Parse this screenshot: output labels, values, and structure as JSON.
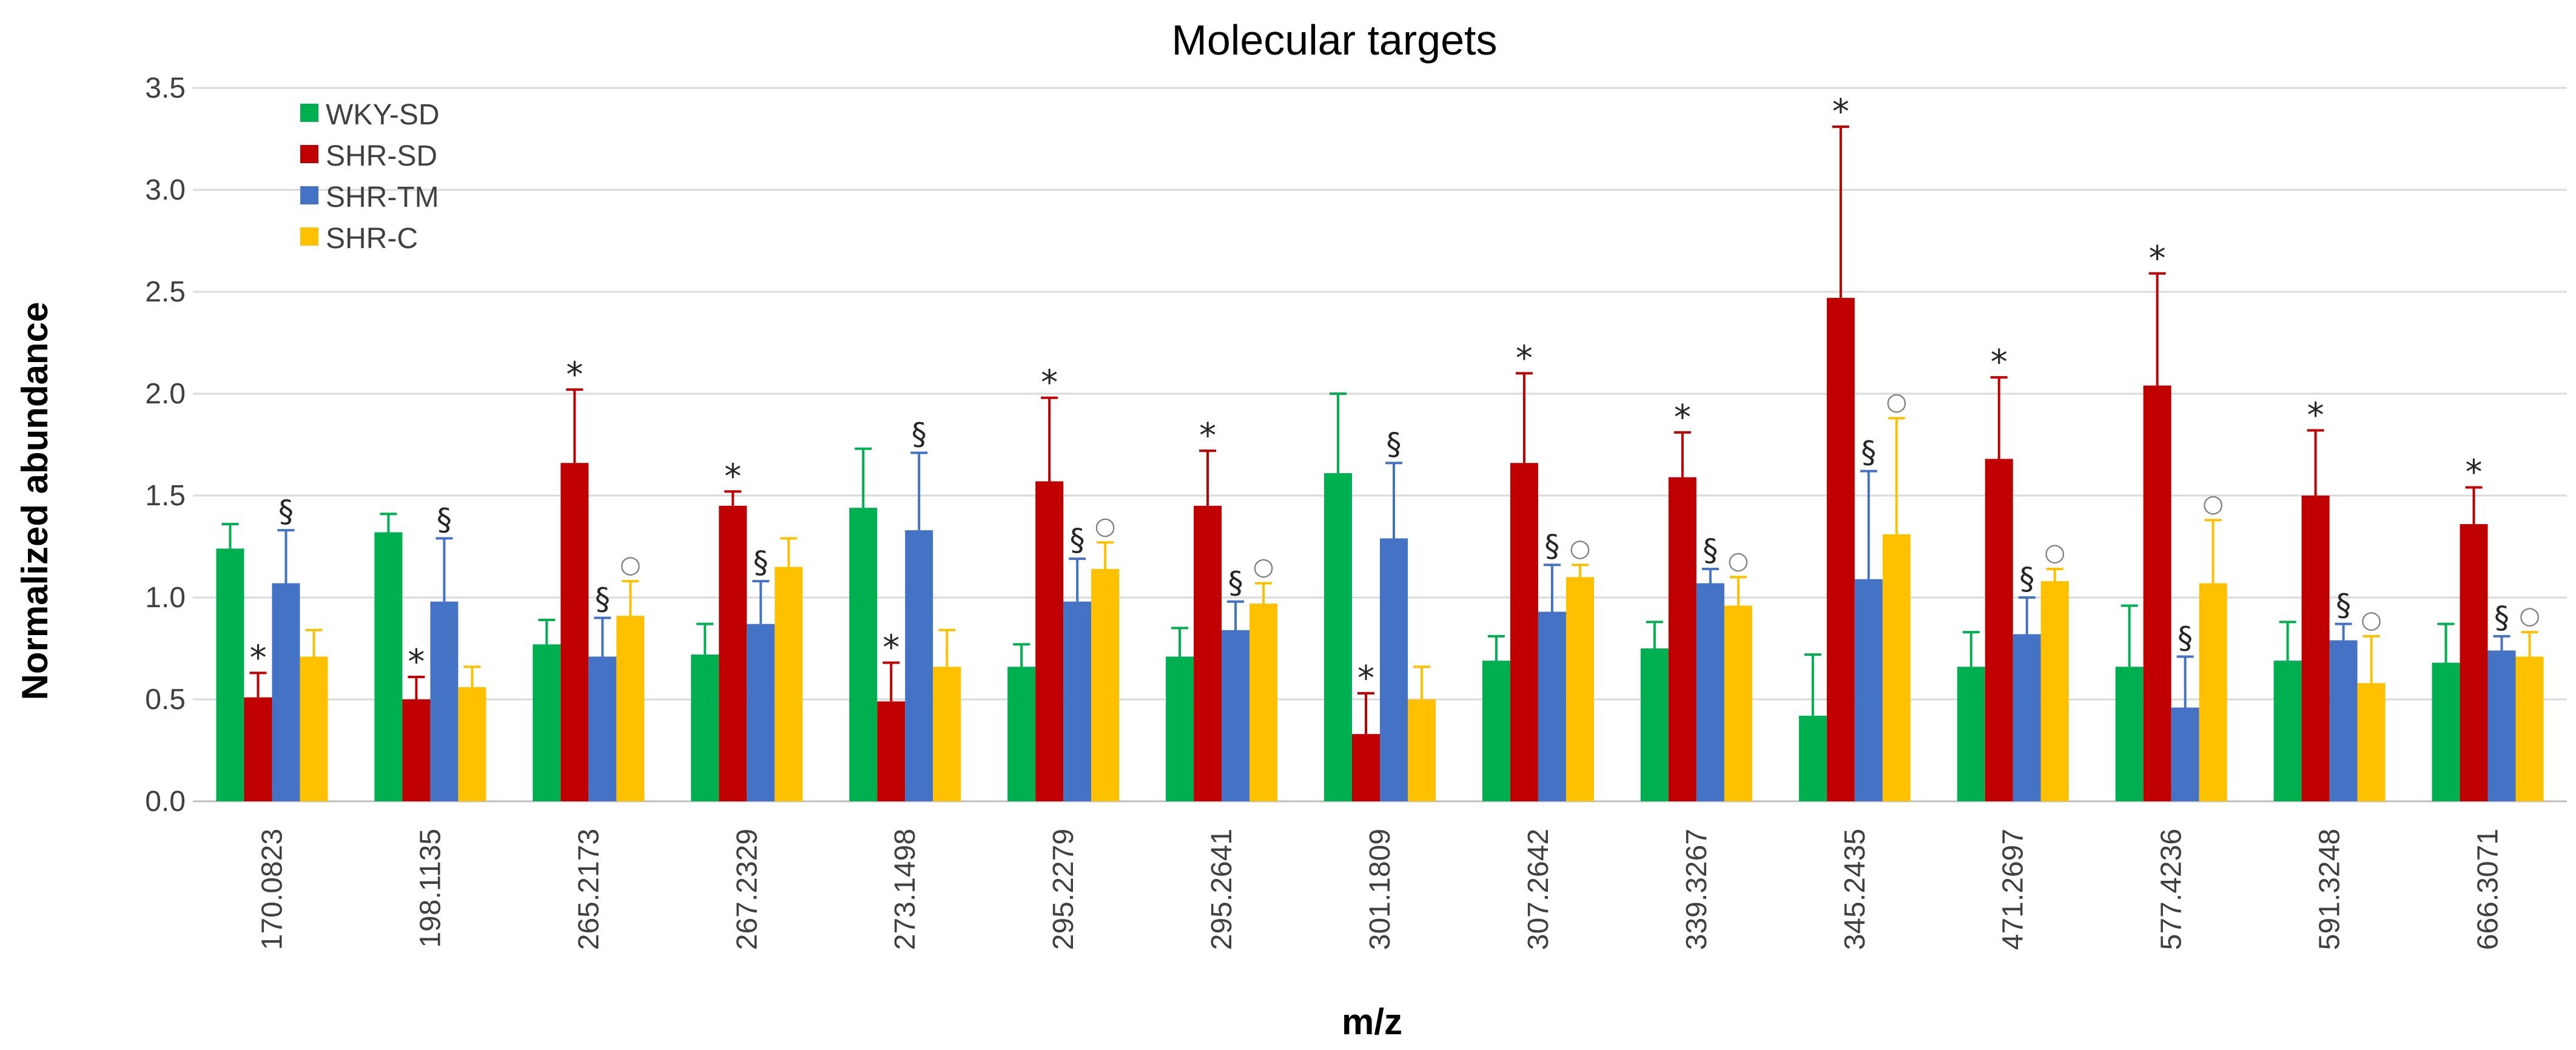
{
  "chart_data": {
    "type": "bar",
    "title": "Molecular targets",
    "xlabel": "m/z",
    "ylabel": "Normalized abundance",
    "ylim": [
      0,
      3.5
    ],
    "yticks": [
      "0.0",
      "0.5",
      "1.0",
      "1.5",
      "2.0",
      "2.5",
      "3.0",
      "3.5"
    ],
    "grid": true,
    "legend_position": "top-left",
    "categories": [
      "170.0823",
      "198.1135",
      "265.2173",
      "267.2329",
      "273.1498",
      "295.2279",
      "295.2641",
      "301.1809",
      "307.2642",
      "339.3267",
      "345.2435",
      "471.2697",
      "577.4236",
      "591.3248",
      "666.3071"
    ],
    "series": [
      {
        "name": "WKY-SD",
        "color": "#00b050",
        "values": [
          1.24,
          1.32,
          0.77,
          0.72,
          1.44,
          0.66,
          0.71,
          1.61,
          0.69,
          0.75,
          0.42,
          0.66,
          0.66,
          0.69,
          0.68
        ],
        "errors": [
          0.12,
          0.09,
          0.12,
          0.15,
          0.29,
          0.11,
          0.14,
          0.39,
          0.12,
          0.13,
          0.3,
          0.17,
          0.3,
          0.19,
          0.19
        ],
        "annotations": [
          "",
          "",
          "",
          "",
          "",
          "",
          "",
          "",
          "",
          "",
          "",
          "",
          "",
          "",
          ""
        ]
      },
      {
        "name": "SHR-SD",
        "color": "#c00000",
        "values": [
          0.51,
          0.5,
          1.66,
          1.45,
          0.49,
          1.57,
          1.45,
          0.33,
          1.66,
          1.59,
          2.47,
          1.68,
          2.04,
          1.5,
          1.36
        ],
        "errors": [
          0.12,
          0.11,
          0.36,
          0.07,
          0.19,
          0.41,
          0.27,
          0.2,
          0.44,
          0.22,
          0.84,
          0.4,
          0.55,
          0.32,
          0.18
        ],
        "annotations": [
          "*",
          "*",
          "*",
          "*",
          "*",
          "*",
          "*",
          "*",
          "*",
          "*",
          "*",
          "*",
          "*",
          "*",
          "*"
        ]
      },
      {
        "name": "SHR-TM",
        "color": "#4472c4",
        "values": [
          1.07,
          0.98,
          0.71,
          0.87,
          1.33,
          0.98,
          0.84,
          1.29,
          0.93,
          1.07,
          1.09,
          0.82,
          0.46,
          0.79,
          0.74
        ],
        "errors": [
          0.26,
          0.31,
          0.19,
          0.21,
          0.38,
          0.21,
          0.14,
          0.37,
          0.23,
          0.07,
          0.53,
          0.18,
          0.25,
          0.08,
          0.07
        ],
        "annotations": [
          "§",
          "§",
          "§",
          "§",
          "§",
          "§",
          "§",
          "§",
          "§",
          "§",
          "§",
          "§",
          "§",
          "§",
          "§"
        ]
      },
      {
        "name": "SHR-C",
        "color": "#ffc000",
        "values": [
          0.71,
          0.56,
          0.91,
          1.15,
          0.66,
          1.14,
          0.97,
          0.5,
          1.1,
          0.96,
          1.31,
          1.08,
          1.07,
          0.58,
          0.71
        ],
        "errors": [
          0.13,
          0.1,
          0.17,
          0.14,
          0.18,
          0.13,
          0.1,
          0.16,
          0.06,
          0.14,
          0.57,
          0.06,
          0.31,
          0.23,
          0.12
        ],
        "annotations": [
          "",
          "",
          "○",
          "",
          "",
          "○",
          "○",
          "",
          "○",
          "○",
          "○",
          "○",
          "○",
          "○",
          "○"
        ]
      }
    ]
  }
}
